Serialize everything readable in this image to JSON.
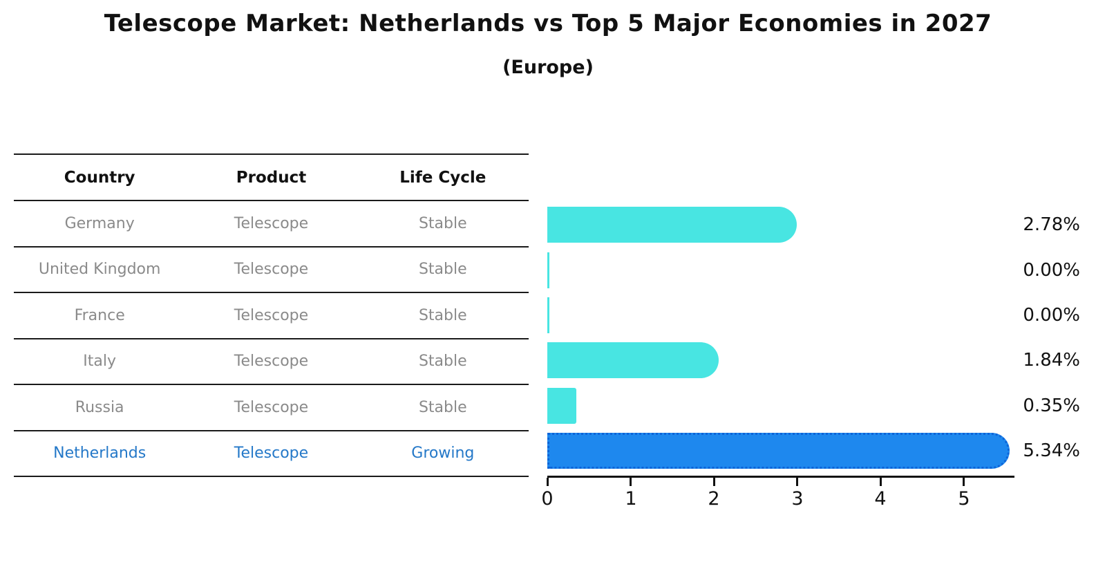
{
  "title": "Telescope Market: Netherlands vs Top 5 Major Economies in 2027",
  "subtitle": "(Europe)",
  "table": {
    "headers": [
      "Country",
      "Product",
      "Life Cycle"
    ],
    "rows": [
      {
        "country": "Germany",
        "product": "Telescope",
        "life_cycle": "Stable",
        "highlighted": false
      },
      {
        "country": "United Kingdom",
        "product": "Telescope",
        "life_cycle": "Stable",
        "highlighted": false
      },
      {
        "country": "France",
        "product": "Telescope",
        "life_cycle": "Stable",
        "highlighted": false
      },
      {
        "country": "Italy",
        "product": "Telescope",
        "life_cycle": "Stable",
        "highlighted": false
      },
      {
        "country": "Russia",
        "product": "Telescope",
        "life_cycle": "Stable",
        "highlighted": false
      },
      {
        "country": "Netherlands",
        "product": "Telescope",
        "life_cycle": "Growing",
        "highlighted": true
      }
    ]
  },
  "chart_data": {
    "type": "bar",
    "orientation": "horizontal",
    "categories": [
      "Germany",
      "United Kingdom",
      "France",
      "Italy",
      "Russia",
      "Netherlands"
    ],
    "values": [
      2.78,
      0.0,
      0.0,
      1.84,
      0.35,
      5.34
    ],
    "value_labels": [
      "2.78%",
      "0.00%",
      "0.00%",
      "1.84%",
      "0.35%",
      "5.34%"
    ],
    "title": "Telescope Market: Netherlands vs Top 5 Major Economies in 2027",
    "subtitle": "(Europe)",
    "xlabel": "",
    "ylabel": "",
    "xlim": [
      0,
      5.6
    ],
    "xticks": [
      0,
      1,
      2,
      3,
      4,
      5
    ],
    "grid": false,
    "legend": false,
    "highlight_category": "Netherlands",
    "bar_style": "rounded-right-cap"
  },
  "colors": {
    "bar_default": "#48e5e2",
    "bar_highlight_fill": "#1e88ee",
    "bar_highlight_border": "#0d64d8",
    "highlight_text": "#2478c8",
    "table_text": "#8a8a8a",
    "header_text": "#111111",
    "line": "#1a1a1a"
  }
}
